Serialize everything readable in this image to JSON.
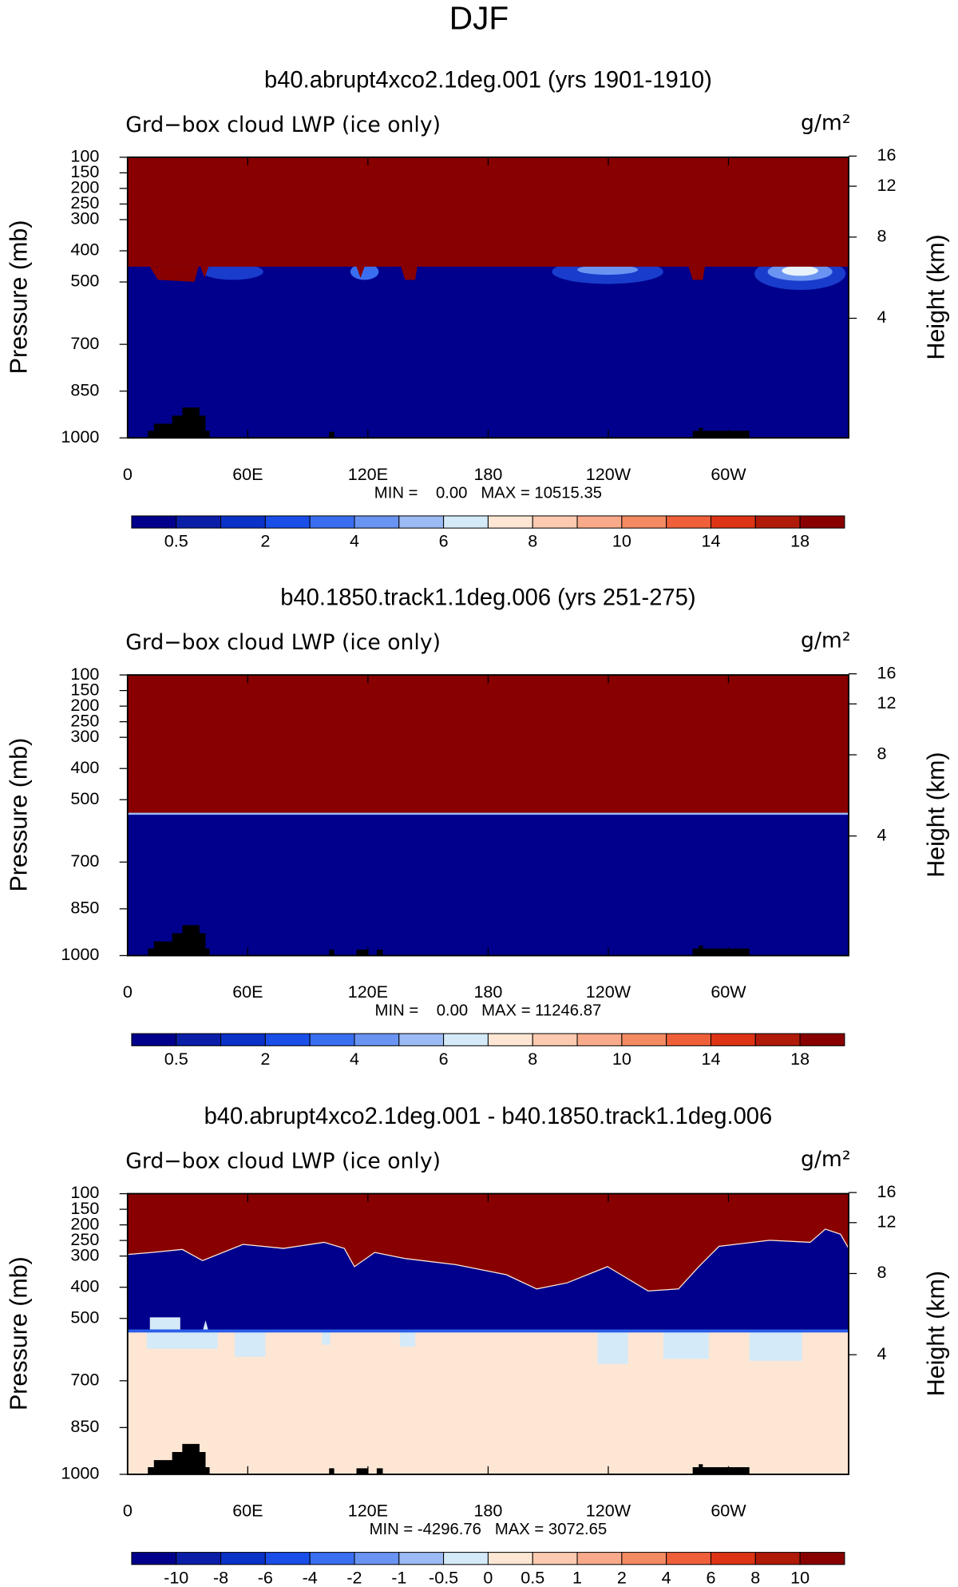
{
  "title": "DJF",
  "chart_data": [
    {
      "type": "contour",
      "title": "b40.abrupt4xco2.1deg.001 (yrs 1901-1910)",
      "subtitle": "Grd−box cloud LWP (ice only)",
      "units": "g/m²",
      "ylabel": "Pressure (mb)",
      "y2label": "Height (km)",
      "xlim": [
        0,
        360
      ],
      "xticks": [
        0,
        {
          "value": 60,
          "label": "60E"
        },
        {
          "value": 120,
          "label": "120E"
        },
        180,
        {
          "value": 240,
          "label": "120W"
        },
        {
          "value": 300,
          "label": "60W"
        }
      ],
      "ylim": [
        1000,
        100
      ],
      "yticks": [
        100,
        150,
        200,
        250,
        300,
        400,
        500,
        700,
        850,
        1000
      ],
      "y2ticks": [
        4,
        8,
        12,
        16
      ],
      "annotation": "MIN =    0.00   MAX = 10515.35",
      "colorbar": {
        "levels": [
          0.5,
          2,
          4,
          6,
          8,
          10,
          14,
          18
        ],
        "colors": [
          "#00008c",
          "#0a1ea8",
          "#0a32c8",
          "#1a4ee8",
          "#3a6ef0",
          "#6a94f2",
          "#9cbaf4",
          "#d4eaf8",
          "#fde6d4",
          "#fbcab0",
          "#f8aa8a",
          "#f48a62",
          "#ef603a",
          "#dc3414",
          "#b01a08",
          "#880000"
        ]
      }
    },
    {
      "type": "contour",
      "title": "b40.1850.track1.1deg.006 (yrs 251-275)",
      "subtitle": "Grd−box cloud LWP (ice only)",
      "units": "g/m²",
      "ylabel": "Pressure (mb)",
      "y2label": "Height (km)",
      "xlim": [
        0,
        360
      ],
      "xticks": [
        0,
        {
          "value": 60,
          "label": "60E"
        },
        {
          "value": 120,
          "label": "120E"
        },
        180,
        {
          "value": 240,
          "label": "120W"
        },
        {
          "value": 300,
          "label": "60W"
        }
      ],
      "ylim": [
        1000,
        100
      ],
      "yticks": [
        100,
        150,
        200,
        250,
        300,
        400,
        500,
        700,
        850,
        1000
      ],
      "y2ticks": [
        4,
        8,
        12,
        16
      ],
      "annotation": "MIN =    0.00   MAX = 11246.87",
      "colorbar": {
        "levels": [
          0.5,
          2,
          4,
          6,
          8,
          10,
          14,
          18
        ],
        "colors": [
          "#00008c",
          "#0a1ea8",
          "#0a32c8",
          "#1a4ee8",
          "#3a6ef0",
          "#6a94f2",
          "#9cbaf4",
          "#d4eaf8",
          "#fde6d4",
          "#fbcab0",
          "#f8aa8a",
          "#f48a62",
          "#ef603a",
          "#dc3414",
          "#b01a08",
          "#880000"
        ]
      }
    },
    {
      "type": "contour",
      "title": "b40.abrupt4xco2.1deg.001 - b40.1850.track1.1deg.006",
      "subtitle": "Grd−box cloud LWP (ice only)",
      "units": "g/m²",
      "ylabel": "Pressure (mb)",
      "y2label": "Height (km)",
      "xlim": [
        0,
        360
      ],
      "xticks": [
        0,
        {
          "value": 60,
          "label": "60E"
        },
        {
          "value": 120,
          "label": "120E"
        },
        180,
        {
          "value": 240,
          "label": "120W"
        },
        {
          "value": 300,
          "label": "60W"
        }
      ],
      "ylim": [
        1000,
        100
      ],
      "yticks": [
        100,
        150,
        200,
        250,
        300,
        400,
        500,
        700,
        850,
        1000
      ],
      "y2ticks": [
        4,
        8,
        12,
        16
      ],
      "annotation": "MIN = -4296.76   MAX = 3072.65",
      "colorbar": {
        "levels": [
          -10,
          -8,
          -6,
          -4,
          -2,
          -1,
          -0.5,
          0,
          0.5,
          1,
          2,
          4,
          6,
          8,
          10
        ],
        "colors": [
          "#00008c",
          "#0a1ea8",
          "#0a32c8",
          "#1a4ee8",
          "#3a6ef0",
          "#6a94f2",
          "#9cbaf4",
          "#d4eaf8",
          "#fde6d4",
          "#fbcab0",
          "#f8aa8a",
          "#f48a62",
          "#ef603a",
          "#dc3414",
          "#b01a08",
          "#880000"
        ]
      }
    }
  ]
}
